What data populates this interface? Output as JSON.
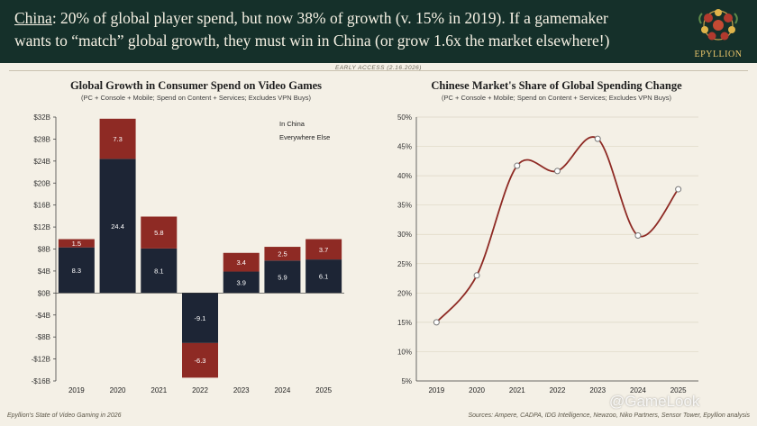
{
  "headline": {
    "lead": "China",
    "rest_line1": ": 20% of global player spend, but now 38% of growth (v. 15% in 2019). If a gamemaker",
    "line2": "wants to “match” global growth, they must win in China (or grow 1.6x the market elsewhere!)"
  },
  "brand": "EPYLLION",
  "early_access": "EARLY ACCESS (2.16.2026)",
  "footer": {
    "left": "Epyllion's State of Video Gaming in 2026",
    "right": "Sources: Ampere, CADPA, IDG Intelligence, Newzoo, Niko Partners, Sensor Tower, Epyllion analysis"
  },
  "watermark": "@GameLook",
  "colors": {
    "header_bg": "#15302a",
    "china": "#8e2a24",
    "rest": "#1d2535",
    "line": "#8e2a24"
  },
  "chart_data": [
    {
      "type": "bar",
      "stacked": true,
      "title": "Global Growth in Consumer Spend on Video Games",
      "subtitle": "(PC + Console + Mobile; Spend on Content + Services; Excludes VPN Buys)",
      "categories": [
        "2019",
        "2020",
        "2021",
        "2022",
        "2023",
        "2024",
        "2025"
      ],
      "series": [
        {
          "name": "Everywhere Else",
          "values": [
            8.3,
            24.4,
            8.1,
            -9.1,
            3.9,
            5.9,
            6.1
          ],
          "labels": [
            "8.3",
            "24.4",
            "8.1",
            "-9.1",
            "3.9",
            "5.9",
            "6.1"
          ]
        },
        {
          "name": "In China",
          "values": [
            1.5,
            7.3,
            5.8,
            -6.3,
            3.4,
            2.5,
            3.7
          ],
          "labels": [
            "1.5",
            "7.3",
            "5.8",
            "-6.3",
            "3.4",
            "2.5",
            "3.7"
          ]
        }
      ],
      "ylim": [
        -16,
        32
      ],
      "yticks": [
        32,
        28,
        24,
        20,
        16,
        12,
        8,
        4,
        0,
        -4,
        -8,
        -12,
        -16
      ],
      "ytick_labels": [
        "$32B",
        "$28B",
        "$24B",
        "$20B",
        "$16B",
        "$12B",
        "$8B",
        "$4B",
        "$0B",
        "-$4B",
        "-$8B",
        "-$12B",
        "-$16B"
      ],
      "legend": [
        "In China",
        "Everywhere Else"
      ],
      "legend_position": "top-right"
    },
    {
      "type": "line",
      "title": "Chinese Market's Share of Global Spending Change",
      "subtitle": "(PC + Console + Mobile; Spend on Content + Services; Excludes VPN Buys)",
      "x": [
        "2019",
        "2020",
        "2021",
        "2022",
        "2023",
        "2024",
        "2025"
      ],
      "values": [
        15,
        23,
        41.7,
        40.8,
        46.3,
        29.8,
        37.7
      ],
      "ylim": [
        5,
        50
      ],
      "yticks": [
        50,
        45,
        40,
        35,
        30,
        25,
        20,
        15,
        10,
        5
      ],
      "ytick_labels": [
        "50%",
        "45%",
        "40%",
        "35%",
        "30%",
        "25%",
        "20%",
        "15%",
        "10%",
        "5%"
      ],
      "grid": true
    }
  ]
}
